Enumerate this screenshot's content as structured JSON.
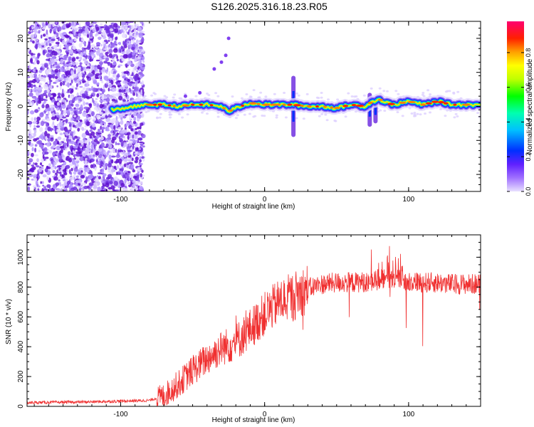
{
  "title": "S126.2025.316.18.23.R05",
  "colors": {
    "red_series": "#f03030",
    "spec_bg": "#ffffff",
    "frame": "#000000"
  },
  "chart_data": [
    {
      "type": "heatmap",
      "xlabel": "Height of straight line (km)",
      "ylabel": "Frequency (Hz)",
      "xlim": [
        -165,
        150
      ],
      "ylim": [
        -25,
        25
      ],
      "xticks": [
        -100,
        0,
        100
      ],
      "yticks": [
        -20,
        -10,
        0,
        10,
        20
      ],
      "colorbar": {
        "label": "Normalized spectral amplitude",
        "range": [
          0.0,
          0.98
        ],
        "ticks": [
          0.0,
          0.2,
          0.4,
          0.6,
          0.8
        ]
      },
      "ridge": {
        "x": [
          -105,
          -90,
          -80,
          -70,
          -60,
          -50,
          -40,
          -30,
          -25,
          -20,
          -10,
          0,
          10,
          20,
          30,
          40,
          50,
          60,
          70,
          75,
          80,
          85,
          90,
          100,
          110,
          120,
          130,
          140,
          150
        ],
        "freq": [
          -1,
          0,
          0.5,
          0.5,
          0,
          0.5,
          0.5,
          0,
          -1.5,
          -0.5,
          1,
          0.5,
          0.5,
          0.5,
          0,
          0,
          -0.5,
          0.5,
          0,
          1.5,
          2,
          1,
          0.5,
          1.5,
          0.5,
          1.5,
          0.5,
          0.5,
          0.5
        ]
      },
      "noise_region_xmax": -88
    },
    {
      "type": "line",
      "xlabel": "Height of straight line (km)",
      "ylabel": "SNR (10 * v/v)",
      "xlim": [
        -165,
        150
      ],
      "ylim": [
        0,
        1150
      ],
      "xticks": [
        -100,
        0,
        100
      ],
      "yticks": [
        0,
        200,
        400,
        600,
        800,
        1000
      ],
      "series": [
        {
          "envelope_x": [
            -165,
            -120,
            -100,
            -80,
            -70,
            -60,
            -50,
            -40,
            -30,
            -20,
            -10,
            0,
            10,
            20,
            30,
            40,
            50,
            60,
            70,
            80,
            90,
            100,
            110,
            120,
            130,
            140,
            150
          ],
          "envelope_y": [
            25,
            30,
            35,
            40,
            70,
            150,
            240,
            320,
            390,
            430,
            520,
            620,
            700,
            740,
            790,
            820,
            830,
            830,
            835,
            850,
            850,
            840,
            830,
            830,
            820,
            820,
            820
          ]
        }
      ]
    }
  ]
}
